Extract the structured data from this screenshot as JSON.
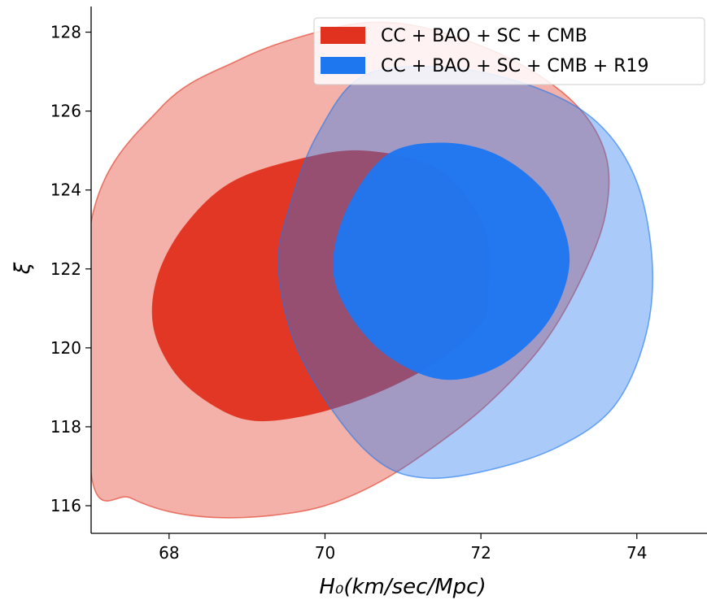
{
  "chart_data": {
    "type": "contour",
    "xlabel": "H₀(km/sec/Mpc)",
    "ylabel": "ξ",
    "xlim": [
      67.0,
      74.9
    ],
    "ylim": [
      115.3,
      128.65
    ],
    "xticks": [
      68,
      70,
      72,
      74
    ],
    "yticks": [
      116,
      118,
      120,
      122,
      124,
      126,
      128
    ],
    "legend_position": "top-right",
    "grid": false,
    "series": [
      {
        "name": "CC + BAO + SC + CMB",
        "color": "#e0321e",
        "contours": [
          {
            "level": "2σ",
            "points": [
              [
                67.0,
                116.8
              ],
              [
                67.5,
                116.2
              ],
              [
                68.0,
                115.85
              ],
              [
                68.6,
                115.7
              ],
              [
                69.3,
                115.75
              ],
              [
                70.0,
                116.0
              ],
              [
                70.7,
                116.6
              ],
              [
                71.4,
                117.5
              ],
              [
                72.1,
                118.6
              ],
              [
                72.8,
                120.1
              ],
              [
                73.3,
                121.8
              ],
              [
                73.6,
                123.4
              ],
              [
                73.6,
                124.9
              ],
              [
                73.2,
                126.2
              ],
              [
                72.4,
                127.3
              ],
              [
                71.4,
                128.05
              ],
              [
                70.6,
                128.25
              ],
              [
                69.8,
                127.95
              ],
              [
                68.9,
                127.3
              ],
              [
                67.9,
                126.1
              ],
              [
                67.0,
                123.2
              ]
            ]
          },
          {
            "level": "1σ",
            "points": [
              [
                67.8,
                120.5
              ],
              [
                68.1,
                119.3
              ],
              [
                68.6,
                118.5
              ],
              [
                69.1,
                118.15
              ],
              [
                69.8,
                118.3
              ],
              [
                70.6,
                118.8
              ],
              [
                71.4,
                119.6
              ],
              [
                72.0,
                120.6
              ],
              [
                72.1,
                121.5
              ],
              [
                72.1,
                122.6
              ],
              [
                71.9,
                123.6
              ],
              [
                71.4,
                124.6
              ],
              [
                70.5,
                125.0
              ],
              [
                69.7,
                124.8
              ],
              [
                68.8,
                124.2
              ],
              [
                68.2,
                123.1
              ],
              [
                67.85,
                121.8
              ]
            ]
          }
        ]
      },
      {
        "name": "CC + BAO + SC + CMB + R19",
        "color": "#1f77f0",
        "contours": [
          {
            "level": "2σ",
            "points": [
              [
                69.4,
                122.1
              ],
              [
                69.6,
                120.2
              ],
              [
                70.1,
                118.4
              ],
              [
                70.7,
                117.1
              ],
              [
                71.3,
                116.7
              ],
              [
                72.1,
                116.9
              ],
              [
                73.0,
                117.5
              ],
              [
                73.7,
                118.5
              ],
              [
                74.1,
                120.2
              ],
              [
                74.2,
                122.1
              ],
              [
                74.0,
                124.2
              ],
              [
                73.5,
                125.7
              ],
              [
                72.7,
                126.6
              ],
              [
                71.6,
                127.1
              ],
              [
                70.5,
                126.9
              ],
              [
                69.9,
                125.4
              ],
              [
                69.55,
                123.6
              ]
            ]
          },
          {
            "level": "1σ",
            "points": [
              [
                70.1,
                122.1
              ],
              [
                70.3,
                120.9
              ],
              [
                70.8,
                119.8
              ],
              [
                71.5,
                119.2
              ],
              [
                72.2,
                119.5
              ],
              [
                72.8,
                120.5
              ],
              [
                73.1,
                121.7
              ],
              [
                73.1,
                122.8
              ],
              [
                72.8,
                124.0
              ],
              [
                72.2,
                124.9
              ],
              [
                71.5,
                125.2
              ],
              [
                70.8,
                124.9
              ],
              [
                70.3,
                123.6
              ]
            ]
          }
        ]
      }
    ]
  }
}
